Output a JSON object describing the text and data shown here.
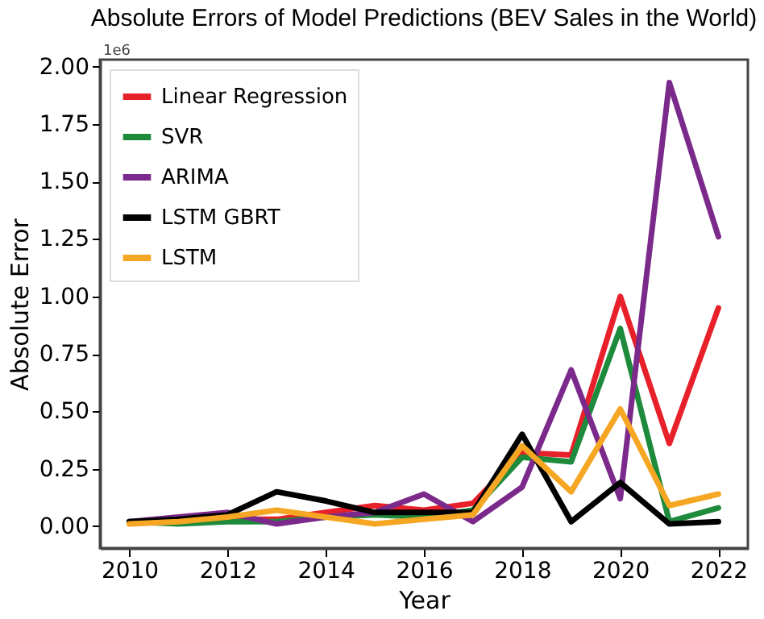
{
  "chart_data": {
    "type": "line",
    "title": "Absolute Errors of Model Predictions (BEV Sales in the World)",
    "xlabel": "Year",
    "ylabel": "Absolute Error",
    "annotations": [
      "1e6"
    ],
    "x": [
      2010,
      2011,
      2012,
      2013,
      2014,
      2015,
      2016,
      2017,
      2018,
      2019,
      2020,
      2021,
      2022
    ],
    "series": [
      {
        "name": "Linear Regression",
        "color": "#e8202a",
        "values": [
          null,
          null,
          0.03,
          0.03,
          0.06,
          0.09,
          0.07,
          0.1,
          0.32,
          0.31,
          1.0,
          0.36,
          0.95
        ]
      },
      {
        "name": "SVR",
        "color": "#1e8a3c",
        "values": [
          0.02,
          0.01,
          0.02,
          0.02,
          0.04,
          0.05,
          0.04,
          0.07,
          0.3,
          0.28,
          0.86,
          0.02,
          0.08
        ]
      },
      {
        "name": "ARIMA",
        "color": "#7b2a8c",
        "values": [
          0.02,
          0.04,
          0.06,
          0.01,
          0.04,
          0.06,
          0.14,
          0.02,
          0.17,
          0.68,
          0.12,
          1.93,
          1.26
        ]
      },
      {
        "name": "LSTM GBRT",
        "color": "#000000",
        "values": [
          0.02,
          0.03,
          0.05,
          0.15,
          0.11,
          0.06,
          0.06,
          0.06,
          0.4,
          0.02,
          0.19,
          0.01,
          0.02
        ]
      },
      {
        "name": "LSTM",
        "color": "#f5a623",
        "values": [
          0.01,
          0.02,
          0.04,
          0.07,
          0.04,
          0.01,
          0.03,
          0.05,
          0.35,
          0.15,
          0.51,
          0.09,
          0.14
        ]
      }
    ],
    "xlim": [
      2009.4,
      2022.6
    ],
    "xticks": [
      2010,
      2012,
      2014,
      2016,
      2018,
      2020,
      2022
    ],
    "ylim": [
      -0.095,
      2.03
    ],
    "yticks": [
      {
        "value": 0,
        "label": "0.00"
      },
      {
        "value": 0.25,
        "label": "0.25"
      },
      {
        "value": 0.5,
        "label": "0.50"
      },
      {
        "value": 0.75,
        "label": "0.75"
      },
      {
        "value": 1,
        "label": "1.00"
      },
      {
        "value": 1.25,
        "label": "1.25"
      },
      {
        "value": 1.5,
        "label": "1.50"
      },
      {
        "value": 1.75,
        "label": "1.75"
      },
      {
        "value": 2,
        "label": "2.00"
      }
    ],
    "legend": "top left",
    "grid": false,
    "marker": "none",
    "line_style": "solid"
  }
}
